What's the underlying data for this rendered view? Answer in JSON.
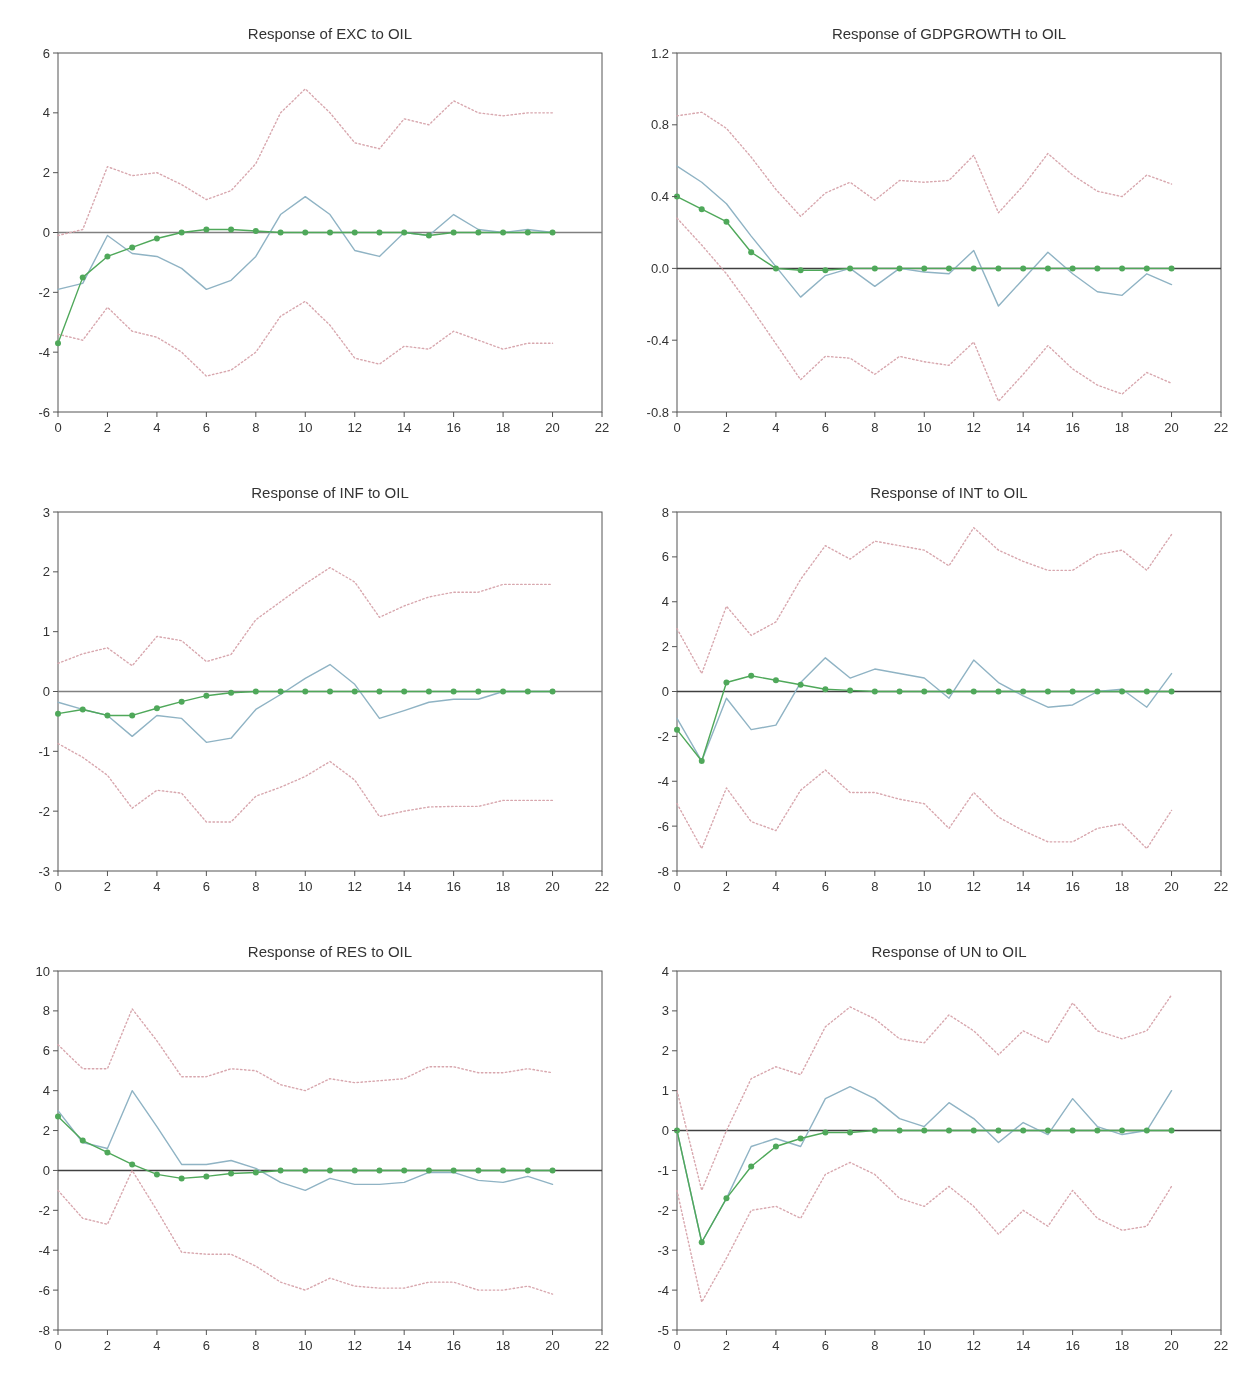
{
  "chart_data": [
    {
      "type": "line",
      "title": "Response of EXC to OIL",
      "x": [
        0,
        1,
        2,
        3,
        4,
        5,
        6,
        7,
        8,
        9,
        10,
        11,
        12,
        13,
        14,
        15,
        16,
        17,
        18,
        19,
        20
      ],
      "xlim": [
        0,
        22
      ],
      "xticks": [
        0,
        2,
        4,
        6,
        8,
        10,
        12,
        14,
        16,
        18,
        20,
        22
      ],
      "ylim": [
        -6,
        6
      ],
      "yticks": [
        -6,
        -4,
        -2,
        0,
        2,
        4,
        6
      ],
      "ref_lines": [
        {
          "axis": "y",
          "value": 0,
          "color": "#808080"
        }
      ],
      "series": [
        {
          "color": "#d8a7ae",
          "line_style": "dotted",
          "marker": "none",
          "values": [
            -0.1,
            0.1,
            2.2,
            1.9,
            2.0,
            1.6,
            1.1,
            1.4,
            2.3,
            4.0,
            4.8,
            4.0,
            3.0,
            2.8,
            3.8,
            3.6,
            4.4,
            4.0,
            3.9,
            4.0,
            4.0
          ]
        },
        {
          "color": "#d8a7ae",
          "line_style": "dotted",
          "marker": "none",
          "values": [
            -3.4,
            -3.6,
            -2.5,
            -3.3,
            -3.5,
            -4.0,
            -4.8,
            -4.6,
            -4.0,
            -2.8,
            -2.3,
            -3.1,
            -4.2,
            -4.4,
            -3.8,
            -3.9,
            -3.3,
            -3.6,
            -3.9,
            -3.7,
            -3.7
          ]
        },
        {
          "color": "#8fb3c4",
          "line_style": "solid",
          "marker": "none",
          "values": [
            -1.9,
            -1.7,
            -0.1,
            -0.7,
            -0.8,
            -1.2,
            -1.9,
            -1.6,
            -0.8,
            0.6,
            1.2,
            0.6,
            -0.6,
            -0.8,
            0.0,
            -0.1,
            0.6,
            0.1,
            0.0,
            0.1,
            0.0
          ]
        },
        {
          "color": "#4fa85a",
          "line_style": "solid",
          "marker": "circle",
          "values": [
            -3.7,
            -1.5,
            -0.8,
            -0.5,
            -0.2,
            0.0,
            0.1,
            0.1,
            0.05,
            0,
            0,
            0,
            0,
            0,
            0,
            -0.1,
            0,
            0,
            0,
            0,
            0
          ]
        }
      ]
    },
    {
      "type": "line",
      "title": "Response of GDPGROWTH to OIL",
      "x": [
        0,
        1,
        2,
        3,
        4,
        5,
        6,
        7,
        8,
        9,
        10,
        11,
        12,
        13,
        14,
        15,
        16,
        17,
        18,
        19,
        20
      ],
      "xlim": [
        0,
        22
      ],
      "xticks": [
        0,
        2,
        4,
        6,
        8,
        10,
        12,
        14,
        16,
        18,
        20,
        22
      ],
      "ylim": [
        -0.8,
        1.2
      ],
      "yticks": [
        {
          "value": -0.8,
          "label": "-0.8"
        },
        {
          "value": -0.4,
          "label": "-0.4"
        },
        {
          "value": 0,
          "label": "0.0"
        },
        {
          "value": 0.4,
          "label": "0.4"
        },
        {
          "value": 0.8,
          "label": "0.8"
        },
        {
          "value": 1.2,
          "label": "1.2"
        }
      ],
      "ref_lines": [
        {
          "axis": "y",
          "value": 0,
          "color": "#404040"
        }
      ],
      "series": [
        {
          "color": "#d8a7ae",
          "line_style": "dotted",
          "marker": "none",
          "values": [
            0.85,
            0.87,
            0.78,
            0.62,
            0.44,
            0.29,
            0.42,
            0.48,
            0.38,
            0.49,
            0.48,
            0.49,
            0.63,
            0.31,
            0.46,
            0.64,
            0.52,
            0.43,
            0.4,
            0.52,
            0.47
          ]
        },
        {
          "color": "#d8a7ae",
          "line_style": "dotted",
          "marker": "none",
          "values": [
            0.28,
            0.13,
            -0.03,
            -0.22,
            -0.42,
            -0.62,
            -0.49,
            -0.5,
            -0.59,
            -0.49,
            -0.52,
            -0.54,
            -0.41,
            -0.74,
            -0.59,
            -0.43,
            -0.56,
            -0.65,
            -0.7,
            -0.58,
            -0.64
          ]
        },
        {
          "color": "#8fb3c4",
          "line_style": "solid",
          "marker": "none",
          "values": [
            0.57,
            0.48,
            0.36,
            0.18,
            0.01,
            -0.16,
            -0.04,
            0.0,
            -0.1,
            0.0,
            -0.02,
            -0.03,
            0.1,
            -0.21,
            -0.06,
            0.09,
            -0.03,
            -0.13,
            -0.15,
            -0.03,
            -0.09
          ]
        },
        {
          "color": "#4fa85a",
          "line_style": "solid",
          "marker": "circle",
          "values": [
            0.4,
            0.33,
            0.26,
            0.09,
            0.0,
            -0.01,
            -0.01,
            0,
            0,
            0,
            0,
            0,
            0,
            0,
            0,
            0,
            0,
            0,
            0,
            0,
            0
          ]
        }
      ]
    },
    {
      "type": "line",
      "title": "Response of INF to OIL",
      "x": [
        0,
        1,
        2,
        3,
        4,
        5,
        6,
        7,
        8,
        9,
        10,
        11,
        12,
        13,
        14,
        15,
        16,
        17,
        18,
        19,
        20
      ],
      "xlim": [
        0,
        22
      ],
      "xticks": [
        0,
        2,
        4,
        6,
        8,
        10,
        12,
        14,
        16,
        18,
        20,
        22
      ],
      "ylim": [
        -3,
        3
      ],
      "yticks": [
        -3,
        -2,
        -1,
        0,
        1,
        2,
        3
      ],
      "ref_lines": [
        {
          "axis": "y",
          "value": 0,
          "color": "#808080"
        }
      ],
      "series": [
        {
          "color": "#d8a7ae",
          "line_style": "dotted",
          "marker": "none",
          "values": [
            0.47,
            0.63,
            0.73,
            0.43,
            0.92,
            0.85,
            0.5,
            0.62,
            1.2,
            1.5,
            1.8,
            2.07,
            1.83,
            1.24,
            1.43,
            1.58,
            1.66,
            1.66,
            1.79,
            1.79,
            1.79
          ]
        },
        {
          "color": "#d8a7ae",
          "line_style": "dotted",
          "marker": "none",
          "values": [
            -0.87,
            -1.1,
            -1.4,
            -1.95,
            -1.65,
            -1.7,
            -2.18,
            -2.18,
            -1.75,
            -1.6,
            -1.42,
            -1.17,
            -1.48,
            -2.09,
            -2.0,
            -1.93,
            -1.92,
            -1.92,
            -1.82,
            -1.82,
            -1.82
          ]
        },
        {
          "color": "#8fb3c4",
          "line_style": "solid",
          "marker": "none",
          "values": [
            -0.18,
            -0.3,
            -0.4,
            -0.75,
            -0.4,
            -0.45,
            -0.85,
            -0.78,
            -0.3,
            -0.05,
            0.22,
            0.45,
            0.12,
            -0.45,
            -0.32,
            -0.18,
            -0.13,
            -0.13,
            0,
            0,
            0
          ]
        },
        {
          "color": "#4fa85a",
          "line_style": "solid",
          "marker": "circle",
          "values": [
            -0.37,
            -0.3,
            -0.4,
            -0.4,
            -0.28,
            -0.17,
            -0.07,
            -0.02,
            0,
            0,
            0,
            0,
            0,
            0,
            0,
            0,
            0,
            0,
            0,
            0,
            0
          ]
        }
      ]
    },
    {
      "type": "line",
      "title": "Response of INT to OIL",
      "x": [
        0,
        1,
        2,
        3,
        4,
        5,
        6,
        7,
        8,
        9,
        10,
        11,
        12,
        13,
        14,
        15,
        16,
        17,
        18,
        19,
        20
      ],
      "xlim": [
        0,
        22
      ],
      "xticks": [
        0,
        2,
        4,
        6,
        8,
        10,
        12,
        14,
        16,
        18,
        20,
        22
      ],
      "ylim": [
        -8,
        8
      ],
      "yticks": [
        -8,
        -6,
        -4,
        -2,
        0,
        2,
        4,
        6,
        8
      ],
      "ref_lines": [
        {
          "axis": "y",
          "value": 0,
          "color": "#404040"
        }
      ],
      "series": [
        {
          "color": "#d8a7ae",
          "line_style": "dotted",
          "marker": "none",
          "values": [
            2.8,
            0.8,
            3.8,
            2.5,
            3.1,
            5.0,
            6.5,
            5.9,
            6.7,
            6.5,
            6.3,
            5.6,
            7.3,
            6.3,
            5.8,
            5.4,
            5.4,
            6.1,
            6.3,
            5.4,
            7.0
          ]
        },
        {
          "color": "#d8a7ae",
          "line_style": "dotted",
          "marker": "none",
          "values": [
            -5.0,
            -7.0,
            -4.3,
            -5.8,
            -6.2,
            -4.4,
            -3.5,
            -4.5,
            -4.5,
            -4.8,
            -5.0,
            -6.1,
            -4.5,
            -5.6,
            -6.2,
            -6.7,
            -6.7,
            -6.1,
            -5.9,
            -7.0,
            -5.3
          ]
        },
        {
          "color": "#8fb3c4",
          "line_style": "solid",
          "marker": "none",
          "values": [
            -1.2,
            -3.1,
            -0.3,
            -1.7,
            -1.5,
            0.4,
            1.5,
            0.6,
            1.0,
            0.8,
            0.6,
            -0.3,
            1.4,
            0.4,
            -0.2,
            -0.7,
            -0.6,
            0.0,
            0.1,
            -0.7,
            0.8
          ]
        },
        {
          "color": "#4fa85a",
          "line_style": "solid",
          "marker": "circle",
          "values": [
            -1.7,
            -3.1,
            0.4,
            0.7,
            0.5,
            0.3,
            0.1,
            0.05,
            0,
            0,
            0,
            0,
            0,
            0,
            0,
            0,
            0,
            0,
            0,
            0,
            0
          ]
        }
      ]
    },
    {
      "type": "line",
      "title": "Response of RES to OIL",
      "x": [
        0,
        1,
        2,
        3,
        4,
        5,
        6,
        7,
        8,
        9,
        10,
        11,
        12,
        13,
        14,
        15,
        16,
        17,
        18,
        19,
        20
      ],
      "xlim": [
        0,
        22
      ],
      "xticks": [
        0,
        2,
        4,
        6,
        8,
        10,
        12,
        14,
        16,
        18,
        20,
        22
      ],
      "ylim": [
        -8,
        10
      ],
      "yticks": [
        -8,
        -6,
        -4,
        -2,
        0,
        2,
        4,
        6,
        8,
        10
      ],
      "ref_lines": [
        {
          "axis": "y",
          "value": 0,
          "color": "#404040"
        }
      ],
      "series": [
        {
          "color": "#d8a7ae",
          "line_style": "dotted",
          "marker": "none",
          "values": [
            6.3,
            5.1,
            5.1,
            8.1,
            6.5,
            4.7,
            4.7,
            5.1,
            5.0,
            4.3,
            4.0,
            4.6,
            4.4,
            4.5,
            4.6,
            5.2,
            5.2,
            4.9,
            4.9,
            5.1,
            4.9
          ]
        },
        {
          "color": "#d8a7ae",
          "line_style": "dotted",
          "marker": "none",
          "values": [
            -1.0,
            -2.4,
            -2.7,
            0.0,
            -2.0,
            -4.1,
            -4.2,
            -4.2,
            -4.8,
            -5.6,
            -6.0,
            -5.4,
            -5.8,
            -5.9,
            -5.9,
            -5.6,
            -5.6,
            -6.0,
            -6.0,
            -5.8,
            -6.2
          ]
        },
        {
          "color": "#8fb3c4",
          "line_style": "solid",
          "marker": "none",
          "values": [
            3.0,
            1.4,
            1.1,
            4.0,
            2.2,
            0.3,
            0.3,
            0.5,
            0.1,
            -0.6,
            -1.0,
            -0.4,
            -0.7,
            -0.7,
            -0.6,
            -0.1,
            -0.1,
            -0.5,
            -0.6,
            -0.3,
            -0.7
          ]
        },
        {
          "color": "#4fa85a",
          "line_style": "solid",
          "marker": "circle",
          "values": [
            2.7,
            1.5,
            0.9,
            0.3,
            -0.2,
            -0.4,
            -0.3,
            -0.15,
            -0.1,
            0,
            0,
            0,
            0,
            0,
            0,
            0,
            0,
            0,
            0,
            0,
            0
          ]
        }
      ]
    },
    {
      "type": "line",
      "title": "Response of UN to OIL",
      "x": [
        0,
        1,
        2,
        3,
        4,
        5,
        6,
        7,
        8,
        9,
        10,
        11,
        12,
        13,
        14,
        15,
        16,
        17,
        18,
        19,
        20
      ],
      "xlim": [
        0,
        22
      ],
      "xticks": [
        0,
        2,
        4,
        6,
        8,
        10,
        12,
        14,
        16,
        18,
        20,
        22
      ],
      "ylim": [
        -5,
        4
      ],
      "yticks": [
        -5,
        -4,
        -3,
        -2,
        -1,
        0,
        1,
        2,
        3,
        4
      ],
      "ref_lines": [
        {
          "axis": "y",
          "value": 0,
          "color": "#404040"
        }
      ],
      "series": [
        {
          "color": "#d8a7ae",
          "line_style": "dotted",
          "marker": "none",
          "values": [
            1.0,
            -1.5,
            0.0,
            1.3,
            1.6,
            1.4,
            2.6,
            3.1,
            2.8,
            2.3,
            2.2,
            2.9,
            2.5,
            1.9,
            2.5,
            2.2,
            3.2,
            2.5,
            2.3,
            2.5,
            3.4
          ]
        },
        {
          "color": "#d8a7ae",
          "line_style": "dotted",
          "marker": "none",
          "values": [
            -1.5,
            -4.3,
            -3.2,
            -2.0,
            -1.9,
            -2.2,
            -1.1,
            -0.8,
            -1.1,
            -1.7,
            -1.9,
            -1.4,
            -1.9,
            -2.6,
            -2.0,
            -2.4,
            -1.5,
            -2.2,
            -2.5,
            -2.4,
            -1.4
          ]
        },
        {
          "color": "#8fb3c4",
          "line_style": "solid",
          "marker": "none",
          "values": [
            0.0,
            -2.8,
            -1.7,
            -0.4,
            -0.2,
            -0.4,
            0.8,
            1.1,
            0.8,
            0.3,
            0.1,
            0.7,
            0.3,
            -0.3,
            0.2,
            -0.1,
            0.8,
            0.1,
            -0.1,
            0.0,
            1.0
          ]
        },
        {
          "color": "#4fa85a",
          "line_style": "solid",
          "marker": "circle",
          "values": [
            0.0,
            -2.8,
            -1.7,
            -0.9,
            -0.4,
            -0.2,
            -0.05,
            -0.05,
            0,
            0,
            0,
            0,
            0,
            0,
            0,
            0,
            0,
            0,
            0,
            0,
            0
          ]
        }
      ]
    }
  ]
}
